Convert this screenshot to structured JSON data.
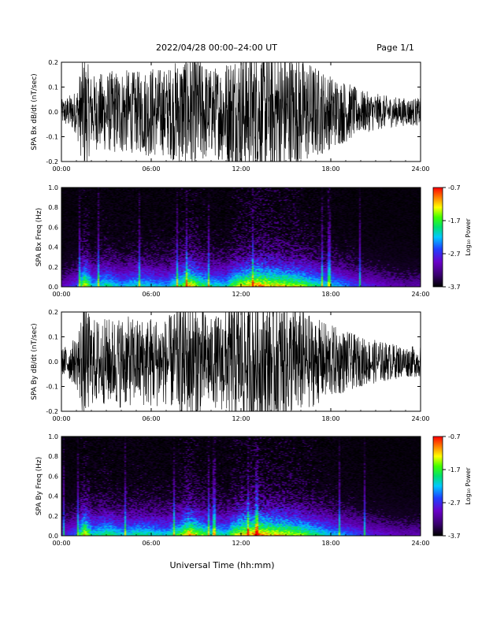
{
  "header": {
    "title": "2022/04/28  00:00–24:00 UT",
    "page": "Page 1/1"
  },
  "footer": {
    "xlabel": "Universal Time (hh:mm)"
  },
  "colorbar": {
    "label": "Log₁₀ Power",
    "ticks": [
      "-0.7",
      "-1.7",
      "-2.7",
      "-3.7"
    ],
    "range": [
      -3.7,
      -0.7
    ],
    "colormap": [
      "#000000",
      "#3a0070",
      "#6a00c8",
      "#2040ff",
      "#00c8ff",
      "#00e070",
      "#40ff00",
      "#ffff00",
      "#ff8000",
      "#ff0000"
    ]
  },
  "chart_data": [
    {
      "type": "line",
      "ylabel": "SPA Bx dB/dt (nT/sec)",
      "xlim": [
        0,
        24
      ],
      "ylim": [
        -0.2,
        0.2
      ],
      "x_ticks": [
        "00:00",
        "06:00",
        "12:00",
        "18:00",
        "24:00"
      ],
      "y_ticks": [
        "-0.2",
        "-0.1",
        "0.0",
        "0.1",
        "0.2"
      ],
      "series": [
        {
          "x": [
            0,
            1,
            1.5,
            2,
            3,
            4,
            5,
            6,
            7,
            8,
            8.5,
            9,
            10,
            11,
            11.5,
            12,
            13,
            14,
            15,
            16,
            17,
            18,
            19,
            20,
            21,
            22,
            23,
            24
          ],
          "amplitude": [
            0.04,
            0.07,
            0.2,
            0.12,
            0.13,
            0.14,
            0.13,
            0.15,
            0.14,
            0.18,
            0.2,
            0.2,
            0.14,
            0.17,
            0.2,
            0.2,
            0.2,
            0.2,
            0.2,
            0.18,
            0.15,
            0.12,
            0.1,
            0.07,
            0.06,
            0.05,
            0.045,
            0.045
          ]
        }
      ]
    },
    {
      "type": "heatmap",
      "ylabel": "SPA Bx Freq (Hz)",
      "xlim": [
        0,
        24
      ],
      "ylim": [
        0,
        1.0
      ],
      "x_ticks": [
        "00:00",
        "06:00",
        "12:00",
        "18:00",
        "24:00"
      ],
      "y_ticks": [
        "0.0",
        "0.2",
        "0.4",
        "0.6",
        "0.8",
        "1.0"
      ],
      "activity": {
        "x": [
          0,
          1,
          1.5,
          2,
          3,
          4,
          5,
          6,
          7,
          8,
          8.5,
          9,
          10,
          11,
          11.5,
          12,
          13,
          14,
          15,
          16,
          17,
          18,
          19,
          20,
          21,
          22,
          23,
          24
        ],
        "level": [
          0.2,
          0.35,
          0.9,
          0.5,
          0.6,
          0.45,
          0.55,
          0.5,
          0.45,
          0.7,
          0.95,
          0.75,
          0.55,
          0.5,
          0.75,
          0.85,
          1.0,
          0.9,
          0.85,
          0.75,
          0.6,
          0.5,
          0.4,
          0.3,
          0.25,
          0.2,
          0.18,
          0.18
        ]
      }
    },
    {
      "type": "line",
      "ylabel": "SPA By dB/dt (nT/sec)",
      "xlim": [
        0,
        24
      ],
      "ylim": [
        -0.2,
        0.2
      ],
      "x_ticks": [
        "00:00",
        "06:00",
        "12:00",
        "18:00",
        "24:00"
      ],
      "y_ticks": [
        "-0.2",
        "-0.1",
        "0.0",
        "0.1",
        "0.2"
      ],
      "series": [
        {
          "x": [
            0,
            1,
            1.5,
            2,
            3,
            4,
            5,
            6,
            7,
            8,
            8.5,
            9,
            10,
            11,
            11.5,
            12,
            13,
            14,
            15,
            16,
            17,
            18,
            19,
            20,
            21,
            22,
            23,
            24
          ],
          "amplitude": [
            0.04,
            0.08,
            0.2,
            0.14,
            0.14,
            0.15,
            0.14,
            0.15,
            0.14,
            0.19,
            0.2,
            0.2,
            0.14,
            0.17,
            0.2,
            0.2,
            0.2,
            0.2,
            0.2,
            0.17,
            0.14,
            0.12,
            0.1,
            0.08,
            0.07,
            0.06,
            0.05,
            0.05
          ]
        }
      ]
    },
    {
      "type": "heatmap",
      "ylabel": "SPA By Freq (Hz)",
      "xlim": [
        0,
        24
      ],
      "ylim": [
        0,
        1.0
      ],
      "x_ticks": [
        "00:00",
        "06:00",
        "12:00",
        "18:00",
        "24:00"
      ],
      "y_ticks": [
        "0.0",
        "0.2",
        "0.4",
        "0.6",
        "0.8",
        "1.0"
      ],
      "activity": {
        "x": [
          0,
          1,
          1.5,
          2,
          3,
          4,
          5,
          6,
          7,
          8,
          8.5,
          9,
          10,
          11,
          11.5,
          12,
          13,
          14,
          15,
          16,
          17,
          18,
          19,
          20,
          21,
          22,
          23,
          24
        ],
        "level": [
          0.25,
          0.4,
          0.95,
          0.55,
          0.65,
          0.5,
          0.6,
          0.55,
          0.5,
          0.75,
          1.0,
          0.8,
          0.6,
          0.55,
          0.8,
          0.9,
          1.0,
          0.9,
          0.85,
          0.75,
          0.6,
          0.5,
          0.4,
          0.32,
          0.27,
          0.22,
          0.2,
          0.2
        ]
      }
    }
  ]
}
